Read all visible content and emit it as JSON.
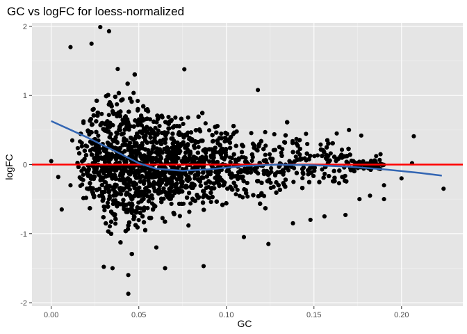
{
  "chart_data": {
    "type": "scatter",
    "title": "GC vs logFC for loess-normalized",
    "xlabel": "GC",
    "ylabel": "logFC",
    "xlim": [
      -0.011,
      0.235
    ],
    "ylim": [
      -2.05,
      2.05
    ],
    "x_ticks": [
      0.0,
      0.05,
      0.1,
      0.15,
      0.2
    ],
    "x_tick_labels": [
      "0.00",
      "0.05",
      "0.10",
      "0.15",
      "0.20"
    ],
    "y_ticks": [
      -2,
      -1,
      0,
      1,
      2
    ],
    "y_tick_labels": [
      "-2",
      "-1",
      "0",
      "1",
      "2"
    ],
    "grid": true,
    "background": "#e5e5e5",
    "point_color": "#000000",
    "density_profile": [
      {
        "x": 0.015,
        "lo": -0.35,
        "hi": 0.45
      },
      {
        "x": 0.02,
        "lo": -0.55,
        "hi": 0.8
      },
      {
        "x": 0.025,
        "lo": -0.8,
        "hi": 1.05
      },
      {
        "x": 0.03,
        "lo": -0.95,
        "hi": 1.2
      },
      {
        "x": 0.04,
        "lo": -1.0,
        "hi": 1.3
      },
      {
        "x": 0.05,
        "lo": -0.95,
        "hi": 1.1
      },
      {
        "x": 0.06,
        "lo": -0.8,
        "hi": 0.9
      },
      {
        "x": 0.08,
        "lo": -0.7,
        "hi": 0.7
      },
      {
        "x": 0.1,
        "lo": -0.6,
        "hi": 0.6
      },
      {
        "x": 0.12,
        "lo": -0.5,
        "hi": 0.55
      },
      {
        "x": 0.14,
        "lo": -0.45,
        "hi": 0.5
      },
      {
        "x": 0.16,
        "lo": -0.38,
        "hi": 0.4
      },
      {
        "x": 0.17,
        "lo": -0.3,
        "hi": 0.3
      },
      {
        "x": 0.175,
        "lo": -0.1,
        "hi": 0.1
      }
    ],
    "outliers": [
      {
        "x": 0.0,
        "y": 0.05
      },
      {
        "x": 0.004,
        "y": -0.18
      },
      {
        "x": 0.011,
        "y": 1.7
      },
      {
        "x": 0.006,
        "y": -0.65
      },
      {
        "x": 0.012,
        "y": 0.35
      },
      {
        "x": 0.011,
        "y": -0.3
      },
      {
        "x": 0.023,
        "y": 1.75
      },
      {
        "x": 0.028,
        "y": 1.99
      },
      {
        "x": 0.033,
        "y": 1.93
      },
      {
        "x": 0.03,
        "y": -1.48
      },
      {
        "x": 0.035,
        "y": -1.5
      },
      {
        "x": 0.044,
        "y": -1.6
      },
      {
        "x": 0.044,
        "y": -1.87
      },
      {
        "x": 0.06,
        "y": -1.2
      },
      {
        "x": 0.065,
        "y": -1.5
      },
      {
        "x": 0.087,
        "y": -1.47
      },
      {
        "x": 0.076,
        "y": 1.38
      },
      {
        "x": 0.118,
        "y": 1.08
      },
      {
        "x": 0.11,
        "y": -1.05
      },
      {
        "x": 0.124,
        "y": -1.15
      },
      {
        "x": 0.138,
        "y": -0.85
      },
      {
        "x": 0.148,
        "y": -0.8
      },
      {
        "x": 0.156,
        "y": -0.75
      },
      {
        "x": 0.168,
        "y": -0.73
      },
      {
        "x": 0.176,
        "y": -0.5
      },
      {
        "x": 0.182,
        "y": -0.45
      },
      {
        "x": 0.19,
        "y": -0.3
      },
      {
        "x": 0.19,
        "y": -0.5
      },
      {
        "x": 0.2,
        "y": -0.2
      },
      {
        "x": 0.206,
        "y": 0.02
      },
      {
        "x": 0.207,
        "y": 0.41
      },
      {
        "x": 0.224,
        "y": -0.35
      },
      {
        "x": 0.188,
        "y": 0.15
      },
      {
        "x": 0.177,
        "y": 0.42
      },
      {
        "x": 0.17,
        "y": 0.5
      },
      {
        "x": 0.163,
        "y": 0.45
      }
    ],
    "series": [
      {
        "type": "loess",
        "color": "#3366b3",
        "x": [
          0.0,
          0.02,
          0.04,
          0.05,
          0.06,
          0.075,
          0.09,
          0.11,
          0.13,
          0.15,
          0.17,
          0.19,
          0.21,
          0.223
        ],
        "y": [
          0.63,
          0.4,
          0.15,
          0.02,
          -0.06,
          -0.09,
          -0.07,
          -0.02,
          0.0,
          -0.01,
          -0.03,
          -0.07,
          -0.12,
          -0.16
        ]
      }
    ],
    "hline": {
      "y": 0,
      "color": "#ff0000"
    }
  }
}
